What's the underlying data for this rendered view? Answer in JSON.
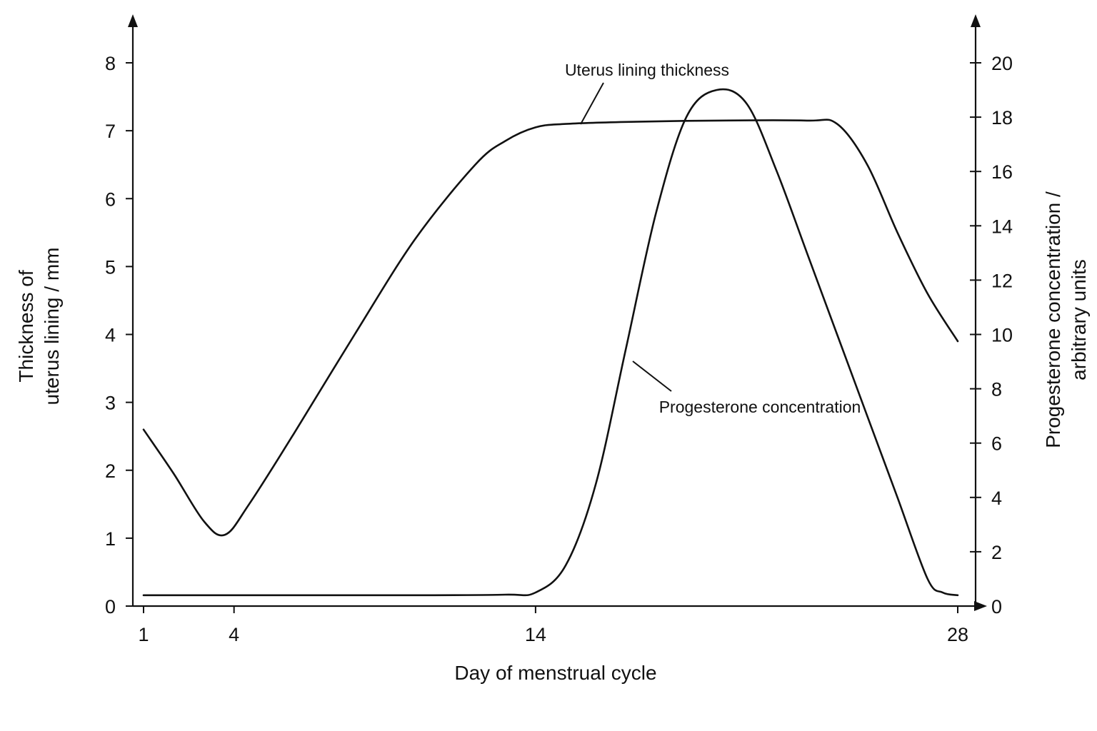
{
  "chart_data": {
    "type": "line",
    "xlabel": "Day of menstrual cycle",
    "ylabel": "Thickness of uterus lining / mm",
    "ylabel_lines": [
      "Thickness of",
      "uterus lining / mm"
    ],
    "y2label": "Progesterone concentration / arbitrary units",
    "y2label_lines": [
      "Progesterone concentration /",
      "arbitrary units"
    ],
    "x_ticks": [
      1,
      4,
      14,
      28
    ],
    "xlim": [
      1,
      28
    ],
    "ylim": [
      0,
      8
    ],
    "y_ticks": [
      0,
      1,
      2,
      3,
      4,
      5,
      6,
      7,
      8
    ],
    "y2lim": [
      0,
      20
    ],
    "y2_ticks": [
      0,
      2,
      4,
      6,
      8,
      10,
      12,
      14,
      16,
      18,
      20
    ],
    "grid": false,
    "series": [
      {
        "name": "Uterus lining thickness",
        "axis": "left",
        "x": [
          1,
          2,
          3,
          3.7,
          4.5,
          6,
          8,
          10,
          12,
          13,
          14,
          15,
          17,
          20,
          23,
          24,
          25,
          26,
          27,
          28
        ],
        "y": [
          2.6,
          1.95,
          1.25,
          1.05,
          1.5,
          2.55,
          4.0,
          5.4,
          6.5,
          6.85,
          7.05,
          7.1,
          7.13,
          7.15,
          7.15,
          7.1,
          6.5,
          5.5,
          4.6,
          3.9
        ]
      },
      {
        "name": "Progesterone concentration",
        "axis": "right",
        "x": [
          1,
          5,
          10,
          13,
          14,
          15,
          16,
          17,
          18,
          19,
          20,
          21,
          22,
          23,
          24,
          25,
          26,
          27,
          27.5,
          28
        ],
        "y": [
          0.4,
          0.4,
          0.4,
          0.42,
          0.5,
          1.5,
          4.5,
          9.5,
          14.5,
          18,
          19,
          18.5,
          16,
          13,
          10,
          7,
          4,
          1,
          0.5,
          0.4
        ]
      }
    ],
    "annotations": [
      "Uterus lining thickness",
      "Progesterone concentration"
    ]
  }
}
